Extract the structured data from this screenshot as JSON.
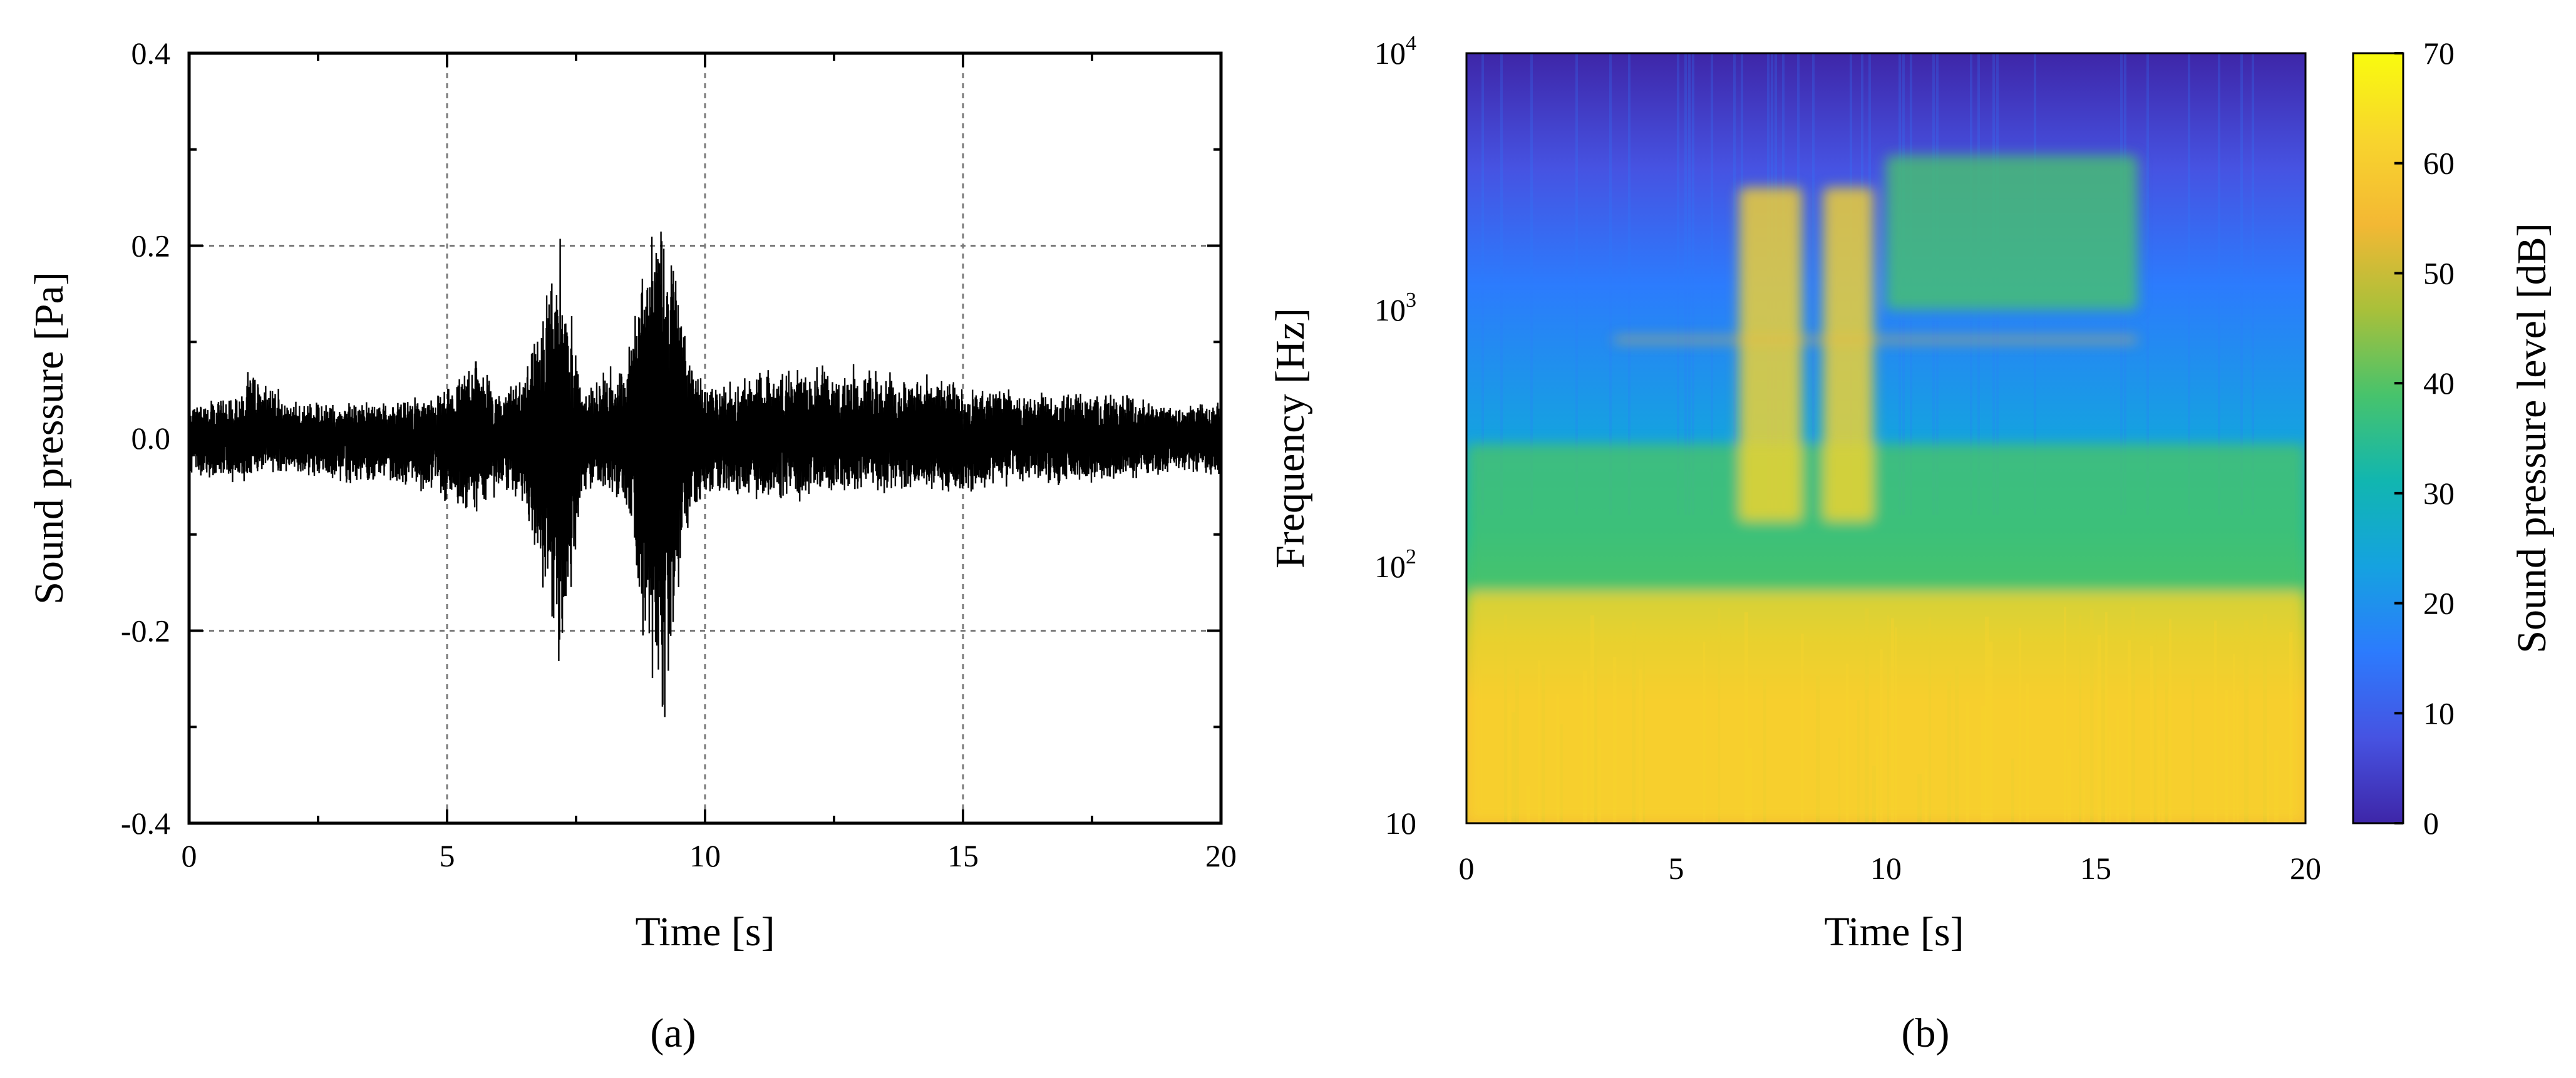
{
  "chart_data": [
    {
      "type": "line",
      "panel_label": "(a)",
      "xlabel": "Time [s]",
      "ylabel": "Sound pressure [Pa]",
      "xlim": [
        0,
        20
      ],
      "ylim": [
        -0.4,
        0.4
      ],
      "xticks": [
        0,
        5,
        10,
        15,
        20
      ],
      "xtick_labels": [
        "0",
        "5",
        "10",
        "15",
        "20"
      ],
      "yticks": [
        -0.4,
        -0.2,
        0.0,
        0.2,
        0.4
      ],
      "ytick_labels": [
        "-0.4",
        "-0.2",
        "0.0",
        "0.2",
        "0.4"
      ],
      "grid": true,
      "line_color": "#000000",
      "series": [
        {
          "envelope_time_s": [
            0.0,
            1.0,
            1.2,
            2.0,
            3.0,
            4.0,
            4.8,
            5.2,
            5.5,
            6.0,
            6.5,
            6.8,
            7.0,
            7.2,
            7.4,
            7.6,
            8.0,
            8.5,
            8.8,
            9.0,
            9.2,
            9.4,
            9.7,
            10.0,
            11.0,
            12.0,
            13.0,
            14.0,
            15.0,
            16.0,
            17.0,
            18.0,
            19.0,
            20.0
          ],
          "envelope_max_pa": [
            0.04,
            0.05,
            0.08,
            0.04,
            0.04,
            0.04,
            0.05,
            0.06,
            0.1,
            0.05,
            0.07,
            0.15,
            0.2,
            0.22,
            0.15,
            0.05,
            0.07,
            0.09,
            0.22,
            0.23,
            0.28,
            0.2,
            0.1,
            0.06,
            0.07,
            0.08,
            0.08,
            0.07,
            0.06,
            0.05,
            0.05,
            0.05,
            0.04,
            0.04
          ],
          "envelope_min_pa": [
            -0.04,
            -0.05,
            -0.04,
            -0.04,
            -0.05,
            -0.05,
            -0.06,
            -0.08,
            -0.09,
            -0.06,
            -0.07,
            -0.15,
            -0.19,
            -0.27,
            -0.2,
            -0.06,
            -0.06,
            -0.09,
            -0.22,
            -0.28,
            -0.31,
            -0.23,
            -0.1,
            -0.06,
            -0.07,
            -0.07,
            -0.06,
            -0.06,
            -0.06,
            -0.05,
            -0.05,
            -0.05,
            -0.04,
            -0.04
          ]
        }
      ]
    },
    {
      "type": "heatmap",
      "panel_label": "(b)",
      "xlabel": "Time [s]",
      "ylabel": "Frequency [Hz]",
      "xlim": [
        0,
        20
      ],
      "ylim": [
        10,
        10000
      ],
      "yscale": "log",
      "xticks": [
        0,
        5,
        10,
        15,
        20
      ],
      "xtick_labels": [
        "0",
        "5",
        "10",
        "15",
        "20"
      ],
      "ytick_labels": [
        {
          "value": 10,
          "base": "10",
          "exp": ""
        },
        {
          "value": 100,
          "base": "10",
          "exp": "2"
        },
        {
          "value": 1000,
          "base": "10",
          "exp": "3"
        },
        {
          "value": 10000,
          "base": "10",
          "exp": "4"
        }
      ],
      "colorbar": {
        "label": "Sound pressure level [dB]",
        "min": 0,
        "max": 70,
        "ticks": [
          0,
          10,
          20,
          30,
          40,
          50,
          60,
          70
        ],
        "tick_labels": [
          "0",
          "10",
          "20",
          "30",
          "40",
          "50",
          "60",
          "70"
        ],
        "colormap": [
          "#3e26a8",
          "#4653e2",
          "#2c7bfd",
          "#15a2e0",
          "#11b6b0",
          "#47c36c",
          "#a9c03a",
          "#f3b834",
          "#f8d52d",
          "#f9fb0e"
        ]
      },
      "features": [
        {
          "note": "broadband energy",
          "time_s": [
            0,
            20
          ],
          "freq_hz": [
            10,
            80
          ],
          "level_db": 62
        },
        {
          "note": "band",
          "time_s": [
            0,
            20
          ],
          "freq_hz": [
            80,
            300
          ],
          "level_db": 38
        },
        {
          "note": "event",
          "time_s": [
            6.5,
            8.0
          ],
          "freq_hz": [
            150,
            3000
          ],
          "level_db": 62
        },
        {
          "note": "event",
          "time_s": [
            8.5,
            9.7
          ],
          "freq_hz": [
            150,
            3000
          ],
          "level_db": 62
        },
        {
          "note": "tonal line",
          "time_s": [
            3.5,
            16.0
          ],
          "freq_hz": [
            750,
            780
          ],
          "level_db": 55
        },
        {
          "note": "harmonic lines",
          "time_s": [
            10.0,
            16.0
          ],
          "freq_hz": [
            1000,
            4000
          ],
          "level_db": 38
        }
      ]
    }
  ]
}
